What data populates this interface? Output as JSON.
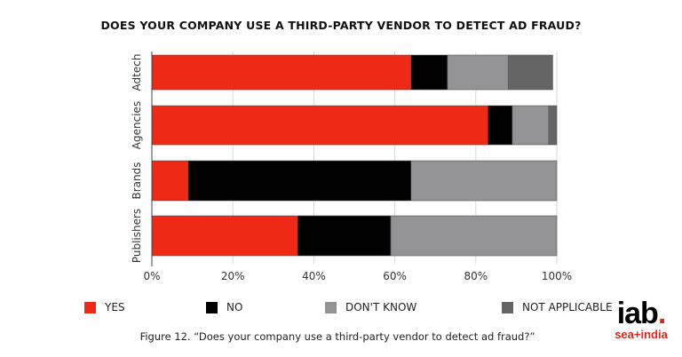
{
  "chart_data": {
    "type": "bar",
    "orientation": "horizontal",
    "stacked": true,
    "title": "DOES YOUR COMPANY USE A THIRD-PARTY VENDOR TO DETECT AD FRAUD?",
    "categories": [
      "Adtech",
      "Agencies",
      "Brands",
      "Publishers"
    ],
    "series": [
      {
        "name": "YES",
        "color": "#ee2a17",
        "values": [
          64,
          83,
          9,
          36
        ]
      },
      {
        "name": "NO",
        "color": "#000000",
        "values": [
          9,
          6,
          55,
          23
        ]
      },
      {
        "name": "DON'T KNOW",
        "color": "#939396",
        "values": [
          15,
          9,
          36,
          41
        ]
      },
      {
        "name": "NOT APPLICABLE",
        "color": "#646464",
        "values": [
          11,
          2,
          0,
          0
        ]
      }
    ],
    "xlim": [
      0,
      100
    ],
    "xticks": [
      "0%",
      "20%",
      "40%",
      "60%",
      "80%",
      "100%"
    ],
    "xlabel": "",
    "ylabel": "",
    "grid": true,
    "legend": "bottom"
  },
  "caption": "Figure 12. “Does your company use a third-party vendor to detect ad fraud?”",
  "logo": {
    "main": "iab",
    "dot": ".",
    "sub": "sea+india"
  }
}
